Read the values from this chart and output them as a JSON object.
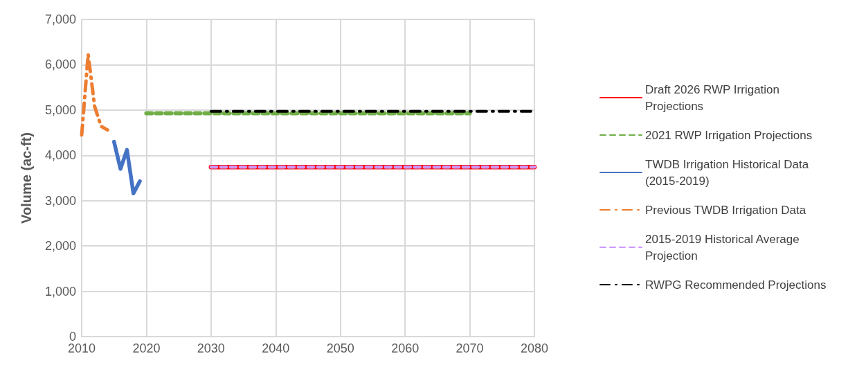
{
  "chart_data": {
    "type": "line",
    "ylabel": "Volume (ac-ft)",
    "xlim": [
      2010,
      2080
    ],
    "xticks": [
      2010,
      2020,
      2030,
      2040,
      2050,
      2060,
      2070,
      2080
    ],
    "ylim": [
      0,
      7000
    ],
    "yticks": [
      0,
      {
        "value": 1000,
        "label": "1,000"
      },
      {
        "value": 2000,
        "label": "2,000"
      },
      {
        "value": 3000,
        "label": "3,000"
      },
      {
        "value": 4000,
        "label": "4,000"
      },
      {
        "value": 5000,
        "label": "5,000"
      },
      {
        "value": 6000,
        "label": "6,000"
      },
      {
        "value": 7000,
        "label": "7,000"
      }
    ],
    "grid": true,
    "legend": "right",
    "marker": "none",
    "series": [
      {
        "name": "Draft 2026 RWP Irrigation Projections",
        "color": "#ff0000",
        "line_style": "solid",
        "x": [
          2030,
          2040,
          2050,
          2060,
          2070,
          2080
        ],
        "values": [
          3740,
          3740,
          3740,
          3740,
          3740,
          3740
        ]
      },
      {
        "name": "2021 RWP Irrigation Projections",
        "color": "#70ad47",
        "line_style": "dashed",
        "x": [
          2020,
          2030,
          2040,
          2050,
          2060,
          2070
        ],
        "values": [
          4930,
          4930,
          4930,
          4930,
          4930,
          4930
        ]
      },
      {
        "name": "TWDB Irrigation Historical Data (2015-2019)",
        "color": "#4472c4",
        "line_style": "solid",
        "x": [
          2015,
          2016,
          2017,
          2018,
          2019
        ],
        "values": [
          4300,
          3700,
          4120,
          3160,
          3430
        ]
      },
      {
        "name": "Previous TWDB Irrigation Data",
        "color": "#ed7d31",
        "line_style": "dashdot",
        "x": [
          2010,
          2011,
          2012,
          2013,
          2014
        ],
        "values": [
          4450,
          6230,
          5080,
          4640,
          4560
        ]
      },
      {
        "name": "2015-2019 Historical Average Projection",
        "color": "#cc99ff",
        "line_style": "dashed",
        "x": [
          2030,
          2040,
          2050,
          2060,
          2070,
          2080
        ],
        "values": [
          3740,
          3740,
          3740,
          3740,
          3740,
          3740
        ]
      },
      {
        "name": "RWPG Recommended Projections",
        "color": "#000000",
        "line_style": "dashdot",
        "x": [
          2030,
          2040,
          2050,
          2060,
          2070,
          2080
        ],
        "values": [
          4970,
          4970,
          4970,
          4970,
          4970,
          4970
        ]
      }
    ]
  }
}
